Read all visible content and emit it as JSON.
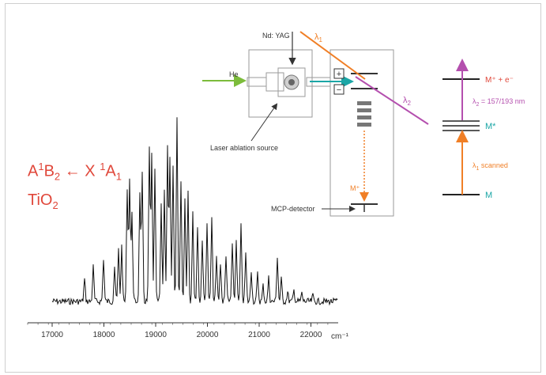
{
  "spectroscopy_figure": {
    "transition_parts": {
      "upper_sup": "1",
      "upper_base": "A",
      "upper_sym": "B",
      "upper_sub": "2",
      "arrow": "←",
      "lower_base": "X",
      "lower_sup": "1",
      "lower_sym": "A",
      "lower_sub": "1"
    },
    "molecule": {
      "base": "TiO",
      "sub": "2"
    },
    "setup": {
      "laser_label": "Nd: YAG",
      "carrier_gas": "He",
      "source_label": "Laser ablation source",
      "plus_sign": "+",
      "minus_sign": "−",
      "lambda1_label": "λ",
      "lambda1_sub": "1",
      "lambda2_label": "λ",
      "lambda2_sub": "2",
      "ion_label": "M⁺",
      "detector_label": "MCP-detector"
    },
    "energy_diagram": {
      "ion_level": "M⁺ + e⁻",
      "excited_level": "M*",
      "ground_level": "M",
      "lambda2_text": "λ",
      "lambda2_sub": "2",
      "lambda2_value": " = 157/193 nm",
      "lambda1_text": "λ",
      "lambda1_sub": "1",
      "lambda1_value": " scanned"
    },
    "axis": {
      "unit": "cm⁻¹",
      "tick_labels": [
        "17000",
        "18000",
        "19000",
        "20000",
        "21000",
        "22000"
      ]
    },
    "colors": {
      "orange": "#f07f26",
      "magenta": "#b44fae",
      "teal": "#1ba6a6",
      "green": "#7cbc3b",
      "red_text": "#e0473a"
    }
  }
}
